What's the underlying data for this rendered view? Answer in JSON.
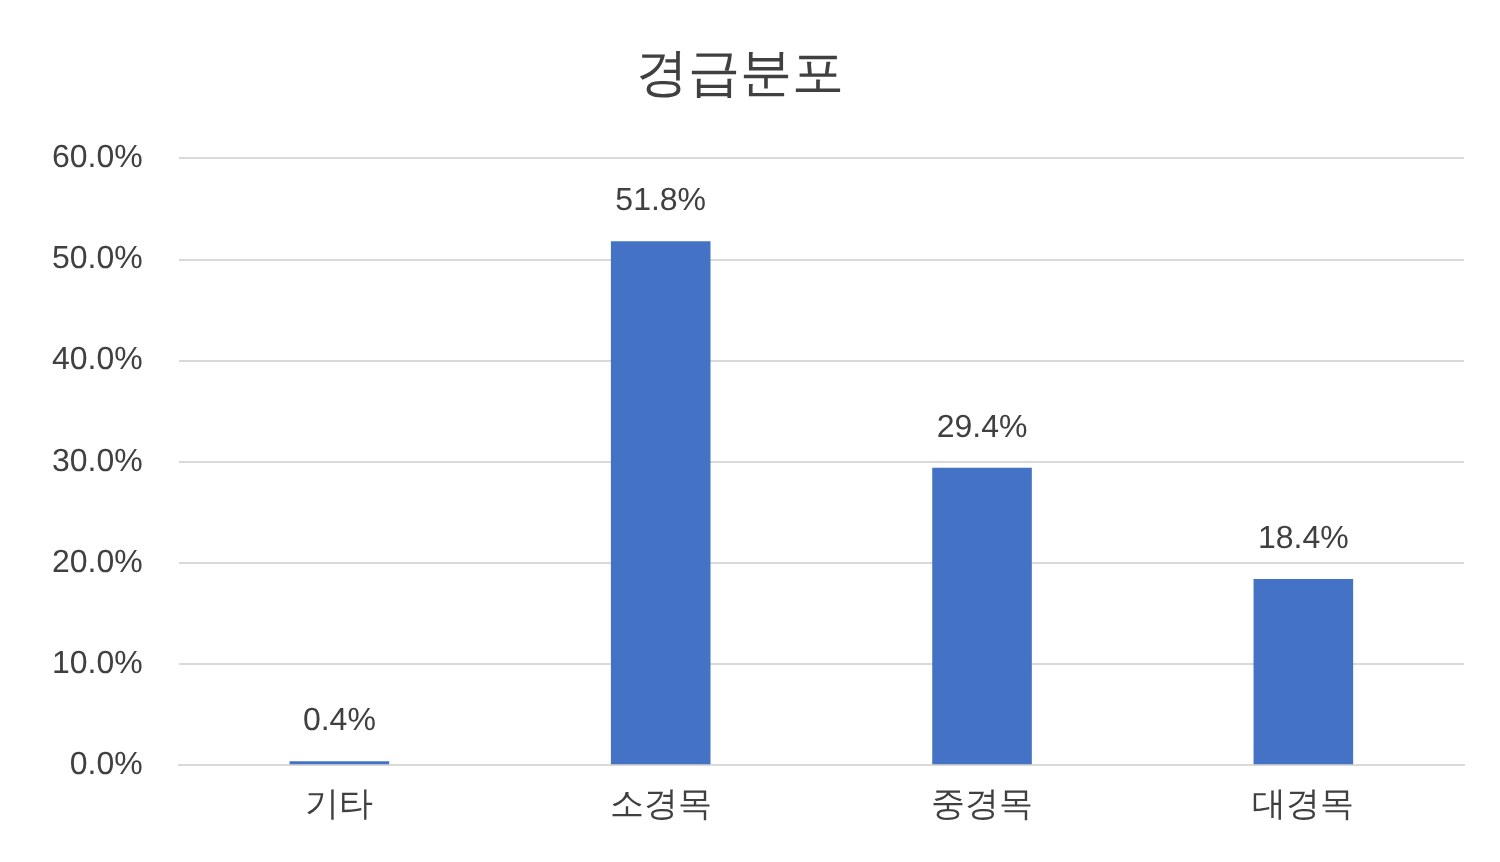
{
  "chart_data": {
    "type": "bar",
    "title": "경급분포",
    "categories": [
      "기타",
      "소경목",
      "중경목",
      "대경목"
    ],
    "values": [
      0.4,
      51.8,
      29.4,
      18.4
    ],
    "value_labels": [
      "0.4%",
      "51.8%",
      "29.4%",
      "18.4%"
    ],
    "color": "#4472c4",
    "ylim": [
      0,
      60
    ],
    "yticks": [
      {
        "value": 0,
        "label": "0.0%"
      },
      {
        "value": 10,
        "label": "10.0%"
      },
      {
        "value": 20,
        "label": "20.0%"
      },
      {
        "value": 30,
        "label": "30.0%"
      },
      {
        "value": 40,
        "label": "40.0%"
      },
      {
        "value": 50,
        "label": "50.0%"
      },
      {
        "value": 60,
        "label": "60.0%"
      }
    ],
    "grid": "y",
    "legend": false
  }
}
